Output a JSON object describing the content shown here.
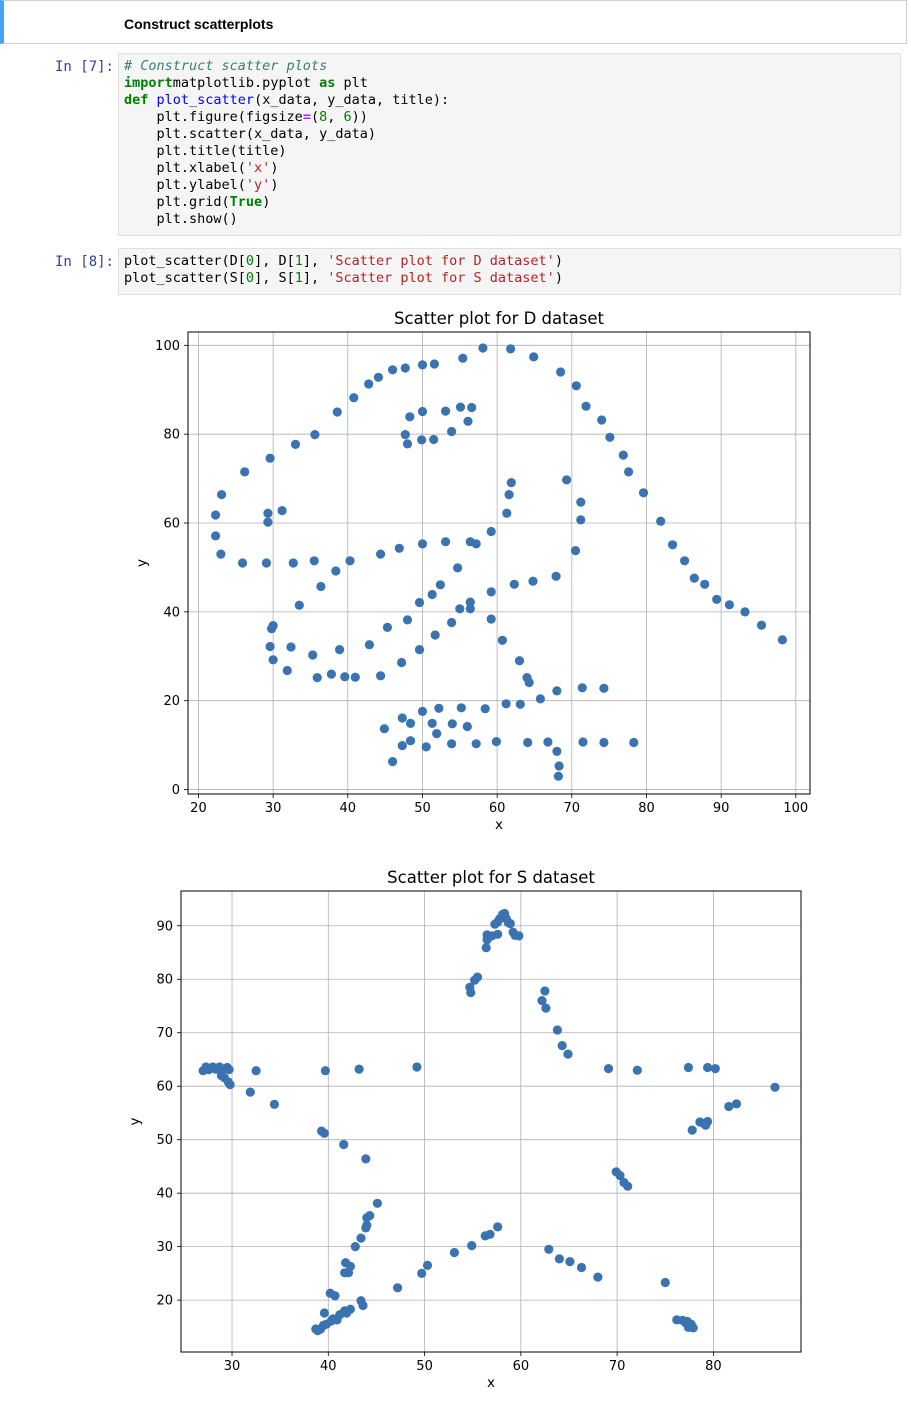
{
  "markdown": {
    "heading": "Construct scatterplots"
  },
  "cells": [
    {
      "prompt": "In [7]:",
      "lines": [
        [
          [
            "cm",
            "# Construct scatter plots"
          ]
        ],
        [
          [
            "kw",
            "import"
          ],
          [
            "",
            "matplotlib.pyplot "
          ],
          [
            "kw",
            "as"
          ],
          [
            "",
            " plt"
          ]
        ],
        [
          [
            "kw",
            "def"
          ],
          [
            "",
            " "
          ],
          [
            "fn",
            "plot_scatter"
          ],
          [
            "",
            "(x_data, y_data, title):"
          ]
        ],
        [
          [
            "",
            "    plt.figure(figsize"
          ],
          [
            "op",
            "="
          ],
          [
            "",
            "("
          ],
          [
            "num",
            "8"
          ],
          [
            "",
            ", "
          ],
          [
            "num",
            "6"
          ],
          [
            "",
            "))"
          ]
        ],
        [
          [
            "",
            "    plt.scatter(x_data, y_data)"
          ]
        ],
        [
          [
            "",
            "    plt.title(title)"
          ]
        ],
        [
          [
            "",
            "    plt.xlabel("
          ],
          [
            "str",
            "'x'"
          ],
          [
            "",
            ")"
          ]
        ],
        [
          [
            "",
            "    plt.ylabel("
          ],
          [
            "str",
            "'y'"
          ],
          [
            "",
            ")"
          ]
        ],
        [
          [
            "",
            "    plt.grid("
          ],
          [
            "kw",
            "True"
          ],
          [
            "",
            ")"
          ]
        ],
        [
          [
            "",
            "    plt.show()"
          ]
        ]
      ]
    },
    {
      "prompt": "In [8]:",
      "lines": [
        [
          [
            "",
            "plot_scatter(D["
          ],
          [
            "num",
            "0"
          ],
          [
            "",
            "], D["
          ],
          [
            "num",
            "1"
          ],
          [
            "",
            "], "
          ],
          [
            "str",
            "'Scatter plot for D dataset'"
          ],
          [
            "",
            ")"
          ]
        ],
        [
          [
            "",
            "plot_scatter(S["
          ],
          [
            "num",
            "0"
          ],
          [
            "",
            "], S["
          ],
          [
            "num",
            "1"
          ],
          [
            "",
            "], "
          ],
          [
            "str",
            "'Scatter plot for S dataset'"
          ],
          [
            "",
            ")"
          ]
        ]
      ]
    }
  ],
  "chart_data": [
    {
      "type": "scatter",
      "title": "Scatter plot for D dataset",
      "xlabel": "x",
      "ylabel": "y",
      "xlim": [
        18.6,
        101.9
      ],
      "ylim": [
        -1.0,
        103.0
      ],
      "xticks": [
        20,
        30,
        40,
        50,
        60,
        70,
        80,
        90,
        100
      ],
      "yticks": [
        0,
        20,
        40,
        60,
        80,
        100
      ],
      "grid": true,
      "color": "#3a73b0",
      "points": [
        [
          22.3,
          61.8
        ],
        [
          23.1,
          66.4
        ],
        [
          22.3,
          57.1
        ],
        [
          23.0,
          53.0
        ],
        [
          25.9,
          51.0
        ],
        [
          29.1,
          51.0
        ],
        [
          29.3,
          60.2
        ],
        [
          29.3,
          62.2
        ],
        [
          31.2,
          62.8
        ],
        [
          29.6,
          74.6
        ],
        [
          26.2,
          71.5
        ],
        [
          33.0,
          77.7
        ],
        [
          35.6,
          79.9
        ],
        [
          38.6,
          85.0
        ],
        [
          40.8,
          88.2
        ],
        [
          42.8,
          91.3
        ],
        [
          44.1,
          92.8
        ],
        [
          46.0,
          94.5
        ],
        [
          47.7,
          94.9
        ],
        [
          50.0,
          95.6
        ],
        [
          51.6,
          95.8
        ],
        [
          55.4,
          97.1
        ],
        [
          58.1,
          99.4
        ],
        [
          61.8,
          99.2
        ],
        [
          64.9,
          97.4
        ],
        [
          68.5,
          94.0
        ],
        [
          70.6,
          90.9
        ],
        [
          71.9,
          86.3
        ],
        [
          74.0,
          83.2
        ],
        [
          75.1,
          79.3
        ],
        [
          76.9,
          75.3
        ],
        [
          77.6,
          71.5
        ],
        [
          79.6,
          66.8
        ],
        [
          81.9,
          60.4
        ],
        [
          83.5,
          55.1
        ],
        [
          85.1,
          51.5
        ],
        [
          86.4,
          47.6
        ],
        [
          87.8,
          46.2
        ],
        [
          89.4,
          42.8
        ],
        [
          91.1,
          41.6
        ],
        [
          93.2,
          40.0
        ],
        [
          95.4,
          37.0
        ],
        [
          98.2,
          33.7
        ],
        [
          32.7,
          51.0
        ],
        [
          35.5,
          51.5
        ],
        [
          38.4,
          49.2
        ],
        [
          40.3,
          51.5
        ],
        [
          44.4,
          53.0
        ],
        [
          46.9,
          54.3
        ],
        [
          50.0,
          55.3
        ],
        [
          53.1,
          55.8
        ],
        [
          56.4,
          55.8
        ],
        [
          57.2,
          55.3
        ],
        [
          59.2,
          58.1
        ],
        [
          61.3,
          62.2
        ],
        [
          61.6,
          66.4
        ],
        [
          61.9,
          69.1
        ],
        [
          69.3,
          69.7
        ],
        [
          71.2,
          64.7
        ],
        [
          71.2,
          60.7
        ],
        [
          70.5,
          53.8
        ],
        [
          67.9,
          48.0
        ],
        [
          64.8,
          46.9
        ],
        [
          62.3,
          46.2
        ],
        [
          59.2,
          44.5
        ],
        [
          56.4,
          42.2
        ],
        [
          56.4,
          40.7
        ],
        [
          55.0,
          40.7
        ],
        [
          54.7,
          49.9
        ],
        [
          52.4,
          46.1
        ],
        [
          51.3,
          43.9
        ],
        [
          49.6,
          42.1
        ],
        [
          48.0,
          38.2
        ],
        [
          45.3,
          36.5
        ],
        [
          33.5,
          41.5
        ],
        [
          36.4,
          45.7
        ],
        [
          29.8,
          36.2
        ],
        [
          30.0,
          36.9
        ],
        [
          29.6,
          32.2
        ],
        [
          30.0,
          29.2
        ],
        [
          32.4,
          32.1
        ],
        [
          35.3,
          30.3
        ],
        [
          38.9,
          31.5
        ],
        [
          42.9,
          32.6
        ],
        [
          49.6,
          31.5
        ],
        [
          51.7,
          34.8
        ],
        [
          53.9,
          37.6
        ],
        [
          59.2,
          38.4
        ],
        [
          60.7,
          33.6
        ],
        [
          63.0,
          29.0
        ],
        [
          64.0,
          25.2
        ],
        [
          64.3,
          24.1
        ],
        [
          65.8,
          20.4
        ],
        [
          68.0,
          22.2
        ],
        [
          71.4,
          22.9
        ],
        [
          74.3,
          22.8
        ],
        [
          31.9,
          26.8
        ],
        [
          35.9,
          25.2
        ],
        [
          37.8,
          26.0
        ],
        [
          39.6,
          25.4
        ],
        [
          41.0,
          25.3
        ],
        [
          44.4,
          25.6
        ],
        [
          47.2,
          28.6
        ],
        [
          44.9,
          13.7
        ],
        [
          47.3,
          16.1
        ],
        [
          48.4,
          14.9
        ],
        [
          50.0,
          17.6
        ],
        [
          51.3,
          14.9
        ],
        [
          51.9,
          12.6
        ],
        [
          52.2,
          18.3
        ],
        [
          54.0,
          14.8
        ],
        [
          55.2,
          18.4
        ],
        [
          56.0,
          14.2
        ],
        [
          58.4,
          18.2
        ],
        [
          61.2,
          19.3
        ],
        [
          63.1,
          19.2
        ],
        [
          46.0,
          6.3
        ],
        [
          47.3,
          9.9
        ],
        [
          48.4,
          11.0
        ],
        [
          50.5,
          9.6
        ],
        [
          53.9,
          10.3
        ],
        [
          57.2,
          10.3
        ],
        [
          59.9,
          10.8
        ],
        [
          64.1,
          10.6
        ],
        [
          66.8,
          10.7
        ],
        [
          68.0,
          8.6
        ],
        [
          68.3,
          5.3
        ],
        [
          68.2,
          3.0
        ],
        [
          71.5,
          10.7
        ],
        [
          74.3,
          10.6
        ],
        [
          78.3,
          10.6
        ],
        [
          47.7,
          79.9
        ],
        [
          48.0,
          77.8
        ],
        [
          48.3,
          83.9
        ],
        [
          49.9,
          78.7
        ],
        [
          50.0,
          85.1
        ],
        [
          51.5,
          78.8
        ],
        [
          53.1,
          85.2
        ],
        [
          53.9,
          80.6
        ],
        [
          55.1,
          86.1
        ],
        [
          56.1,
          82.9
        ],
        [
          56.6,
          86.0
        ]
      ]
    },
    {
      "type": "scatter",
      "title": "Scatter plot for S dataset",
      "xlabel": "x",
      "ylabel": "y",
      "xlim": [
        24.7,
        89.1
      ],
      "ylim": [
        10.3,
        96.5
      ],
      "xticks": [
        30,
        40,
        50,
        60,
        70,
        80
      ],
      "yticks": [
        20,
        30,
        40,
        50,
        60,
        70,
        80,
        90
      ],
      "grid": true,
      "color": "#3a73b0",
      "points": [
        [
          27.0,
          62.9
        ],
        [
          27.3,
          63.6
        ],
        [
          27.6,
          63.1
        ],
        [
          28.0,
          63.6
        ],
        [
          28.3,
          63.2
        ],
        [
          28.7,
          63.6
        ],
        [
          29.1,
          63.2
        ],
        [
          29.5,
          63.5
        ],
        [
          29.7,
          63.1
        ],
        [
          28.9,
          62.0
        ],
        [
          29.2,
          61.6
        ],
        [
          29.6,
          60.8
        ],
        [
          29.8,
          60.3
        ],
        [
          31.9,
          58.9
        ],
        [
          32.5,
          62.9
        ],
        [
          34.4,
          56.6
        ],
        [
          39.7,
          62.9
        ],
        [
          43.2,
          63.2
        ],
        [
          49.2,
          63.6
        ],
        [
          39.3,
          51.6
        ],
        [
          39.6,
          51.2
        ],
        [
          41.6,
          49.1
        ],
        [
          43.9,
          46.4
        ],
        [
          45.1,
          38.1
        ],
        [
          44.3,
          35.8
        ],
        [
          44.0,
          35.4
        ],
        [
          44.0,
          34.0
        ],
        [
          43.9,
          33.5
        ],
        [
          43.4,
          31.6
        ],
        [
          42.8,
          30.0
        ],
        [
          41.8,
          27.0
        ],
        [
          42.3,
          26.3
        ],
        [
          41.7,
          25.1
        ],
        [
          42.1,
          25.1
        ],
        [
          38.7,
          14.6
        ],
        [
          38.9,
          14.3
        ],
        [
          39.2,
          14.6
        ],
        [
          39.5,
          15.3
        ],
        [
          39.8,
          15.5
        ],
        [
          39.6,
          17.6
        ],
        [
          40.2,
          21.3
        ],
        [
          40.7,
          20.8
        ],
        [
          40.3,
          16.1
        ],
        [
          40.5,
          16.5
        ],
        [
          40.9,
          16.3
        ],
        [
          41.2,
          17.3
        ],
        [
          41.7,
          18.0
        ],
        [
          41.9,
          17.6
        ],
        [
          42.3,
          18.3
        ],
        [
          43.4,
          19.9
        ],
        [
          43.6,
          19.0
        ],
        [
          47.2,
          22.3
        ],
        [
          49.7,
          25.0
        ],
        [
          50.3,
          26.5
        ],
        [
          53.1,
          28.9
        ],
        [
          54.9,
          30.2
        ],
        [
          56.3,
          32.0
        ],
        [
          56.8,
          32.3
        ],
        [
          57.6,
          33.7
        ],
        [
          62.9,
          29.5
        ],
        [
          64.0,
          27.7
        ],
        [
          65.1,
          27.2
        ],
        [
          66.3,
          26.1
        ],
        [
          68.0,
          24.3
        ],
        [
          75.0,
          23.3
        ],
        [
          76.2,
          16.3
        ],
        [
          76.8,
          16.2
        ],
        [
          77.1,
          15.8
        ],
        [
          77.3,
          16.0
        ],
        [
          77.6,
          15.1
        ],
        [
          77.7,
          15.5
        ],
        [
          77.9,
          14.8
        ],
        [
          77.4,
          14.9
        ],
        [
          69.9,
          44.0
        ],
        [
          70.3,
          43.3
        ],
        [
          70.7,
          42.0
        ],
        [
          71.1,
          41.3
        ],
        [
          77.8,
          51.8
        ],
        [
          78.6,
          53.3
        ],
        [
          79.0,
          53.0
        ],
        [
          79.2,
          52.7
        ],
        [
          79.4,
          53.4
        ],
        [
          81.6,
          56.2
        ],
        [
          82.4,
          56.7
        ],
        [
          86.4,
          59.8
        ],
        [
          69.1,
          63.3
        ],
        [
          72.1,
          63.0
        ],
        [
          77.4,
          63.5
        ],
        [
          79.4,
          63.5
        ],
        [
          80.2,
          63.3
        ],
        [
          54.7,
          78.5
        ],
        [
          54.8,
          77.5
        ],
        [
          55.2,
          79.8
        ],
        [
          55.5,
          80.4
        ],
        [
          56.4,
          85.9
        ],
        [
          56.5,
          87.4
        ],
        [
          56.5,
          88.3
        ],
        [
          57.0,
          88.1
        ],
        [
          57.3,
          90.3
        ],
        [
          57.6,
          90.7
        ],
        [
          57.8,
          91.3
        ],
        [
          58.1,
          92.1
        ],
        [
          58.3,
          92.3
        ],
        [
          58.5,
          91.3
        ],
        [
          58.7,
          90.6
        ],
        [
          58.9,
          90.4
        ],
        [
          59.2,
          88.8
        ],
        [
          59.4,
          88.2
        ],
        [
          59.8,
          88.1
        ],
        [
          57.6,
          88.4
        ],
        [
          62.2,
          76.0
        ],
        [
          62.5,
          77.8
        ],
        [
          62.6,
          74.6
        ],
        [
          63.8,
          70.5
        ],
        [
          64.3,
          67.6
        ],
        [
          64.9,
          66.0
        ]
      ]
    }
  ]
}
